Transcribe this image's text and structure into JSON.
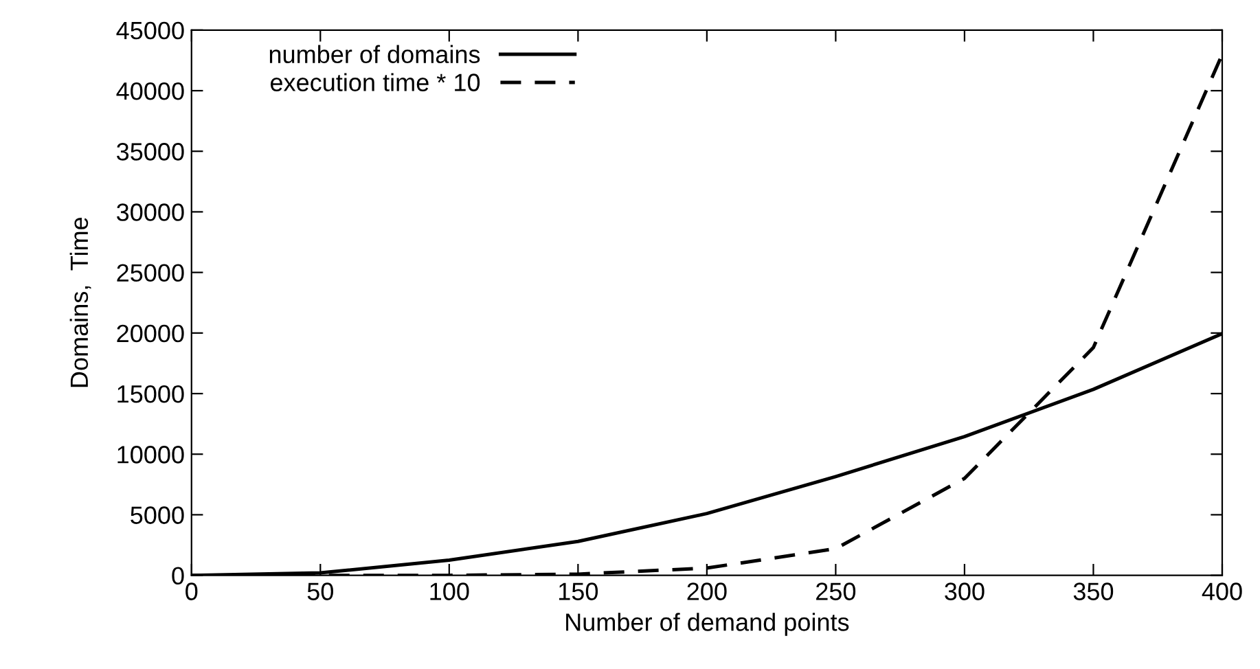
{
  "chart_data": {
    "type": "line",
    "xlabel": "Number of demand points",
    "ylabel": "Domains,  Time",
    "x": [
      0,
      50,
      100,
      150,
      200,
      250,
      300,
      350,
      400
    ],
    "series": [
      {
        "name": "number of domains",
        "color": "#000000",
        "line_style": "solid",
        "values": [
          0,
          200,
          1250,
          2800,
          5100,
          8150,
          11450,
          15350,
          19950
        ]
      },
      {
        "name": "execution time * 10",
        "color": "#000000",
        "line_style": "dashed",
        "values": [
          0,
          0,
          0,
          100,
          600,
          2200,
          8000,
          18800,
          43000
        ]
      }
    ],
    "xlim": [
      0,
      400
    ],
    "xticks": [
      0,
      50,
      100,
      150,
      200,
      250,
      300,
      350,
      400
    ],
    "ylim": [
      0,
      45000
    ],
    "yticks": [
      0,
      5000,
      10000,
      15000,
      20000,
      25000,
      30000,
      35000,
      40000,
      45000
    ],
    "grid": false,
    "legend": "top left",
    "marker": "none"
  }
}
